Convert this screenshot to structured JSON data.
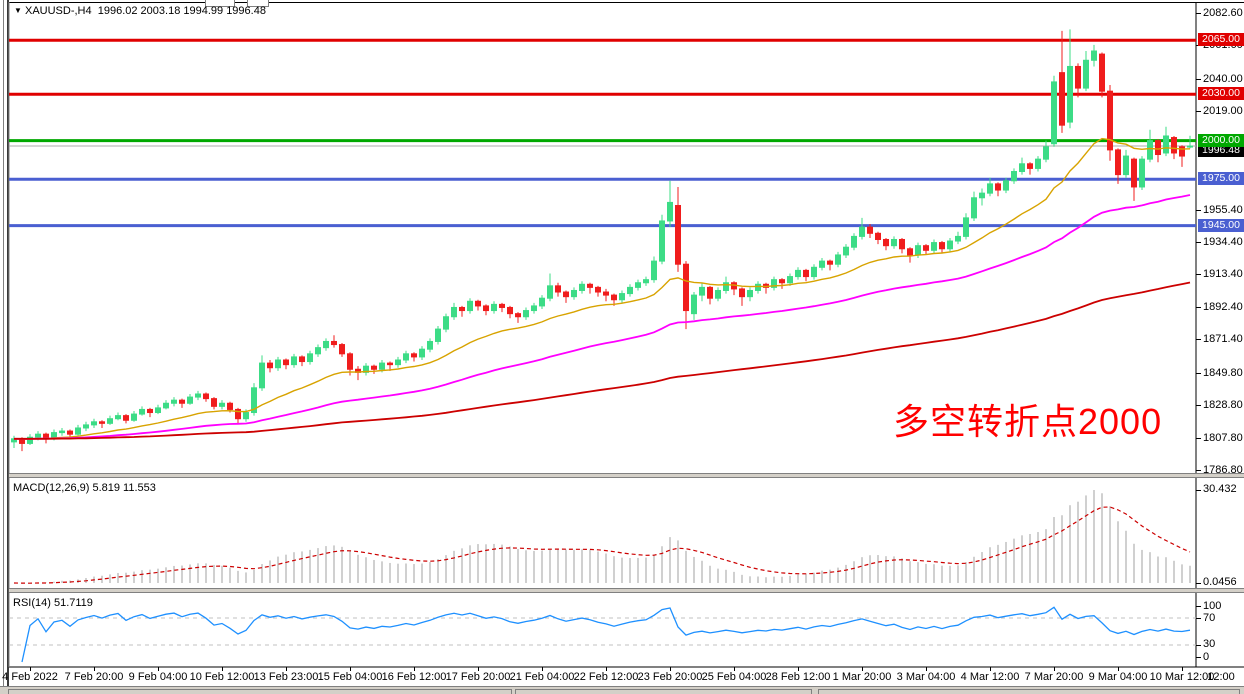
{
  "title_bar": {
    "collapse_icon": "▼",
    "symbol": "XAUUSD-,H4",
    "ohlc_text": "1996.02 2003.18 1994.99 1996.48"
  },
  "annotation": {
    "text": "多空转折点2000",
    "color": "#FF0000"
  },
  "colors": {
    "bull": "#3CDC86",
    "bear": "#F01D1D",
    "ma_fast": "#D8A300",
    "ma_mid": "#FF00FF",
    "ma_slow": "#CC0000",
    "level_red": "#E00000",
    "level_green": "#00A800",
    "level_blue": "#4A5FD1",
    "current_line": "#ABABAB",
    "current_badge": "#000000",
    "macd_hist": "#C0C0C0",
    "macd_signal": "#CC0000",
    "rsi_line": "#1E90FF",
    "dashed_level": "#C0C0C0"
  },
  "chart_data": {
    "type": "candlestick",
    "symbol": "XAUUSD-",
    "timeframe": "H4",
    "current_bar": {
      "open": 1996.02,
      "high": 2003.18,
      "low": 1994.99,
      "close": 1996.48
    },
    "price_axis_ticks": [
      "2082.60",
      "2061.60",
      "2040.00",
      "2019.00",
      "1955.40",
      "1934.40",
      "1913.40",
      "1892.40",
      "1871.40",
      "1849.80",
      "1828.80",
      "1807.80",
      "1786.80"
    ],
    "price_axis_tick_values": [
      2082.6,
      2061.6,
      2040.0,
      2019.0,
      1955.4,
      1934.4,
      1913.4,
      1892.4,
      1871.4,
      1849.8,
      1828.8,
      1807.8,
      1786.8
    ],
    "h_levels": [
      {
        "value": 2065.0,
        "label": "2065.00",
        "color": "#E00000"
      },
      {
        "value": 2030.0,
        "label": "2030.00",
        "color": "#E00000"
      },
      {
        "value": 2000.0,
        "label": "2000.00",
        "color": "#00A800"
      },
      {
        "value": 1975.0,
        "label": "1975.00",
        "color": "#4A5FD1"
      },
      {
        "value": 1945.0,
        "label": "1945.00",
        "color": "#4A5FD1"
      }
    ],
    "current_price": {
      "value": 1996.48,
      "label": "1996.48"
    },
    "price_range": {
      "top": 2082.6,
      "bottom": 1786.8
    },
    "moving_averages": [
      {
        "name": "ma-fast",
        "period": 20,
        "color": "#D8A300",
        "width": 1.4
      },
      {
        "name": "ma-mid",
        "period": 60,
        "color": "#FF00FF",
        "width": 1.8
      },
      {
        "name": "ma-slow",
        "period": 170,
        "color": "#CC0000",
        "width": 1.8
      }
    ],
    "candles": [
      [
        1805,
        1809,
        1801,
        1807
      ],
      [
        1807,
        1808,
        1799,
        1804
      ],
      [
        1804,
        1810,
        1803,
        1808
      ],
      [
        1808,
        1812,
        1806,
        1810
      ],
      [
        1810,
        1811,
        1804,
        1807
      ],
      [
        1807,
        1813,
        1806,
        1811
      ],
      [
        1811,
        1814,
        1809,
        1812
      ],
      [
        1812,
        1813,
        1807,
        1810
      ],
      [
        1810,
        1816,
        1809,
        1814
      ],
      [
        1814,
        1818,
        1812,
        1816
      ],
      [
        1816,
        1820,
        1814,
        1818
      ],
      [
        1818,
        1819,
        1814,
        1817
      ],
      [
        1817,
        1822,
        1816,
        1820
      ],
      [
        1820,
        1824,
        1819,
        1822
      ],
      [
        1822,
        1823,
        1817,
        1819
      ],
      [
        1819,
        1825,
        1818,
        1823
      ],
      [
        1823,
        1828,
        1822,
        1826
      ],
      [
        1826,
        1827,
        1821,
        1824
      ],
      [
        1824,
        1829,
        1823,
        1827
      ],
      [
        1827,
        1832,
        1826,
        1830
      ],
      [
        1830,
        1834,
        1828,
        1832
      ],
      [
        1832,
        1833,
        1827,
        1830
      ],
      [
        1830,
        1836,
        1829,
        1834
      ],
      [
        1834,
        1838,
        1832,
        1836
      ],
      [
        1836,
        1837,
        1831,
        1833
      ],
      [
        1833,
        1834,
        1826,
        1828
      ],
      [
        1828,
        1832,
        1826,
        1830
      ],
      [
        1830,
        1831,
        1824,
        1826
      ],
      [
        1826,
        1827,
        1817,
        1820
      ],
      [
        1820,
        1826,
        1818,
        1824
      ],
      [
        1824,
        1843,
        1822,
        1840
      ],
      [
        1840,
        1861,
        1838,
        1856
      ],
      [
        1856,
        1858,
        1850,
        1853
      ],
      [
        1853,
        1860,
        1851,
        1858
      ],
      [
        1858,
        1859,
        1852,
        1855
      ],
      [
        1855,
        1862,
        1853,
        1860
      ],
      [
        1860,
        1861,
        1854,
        1857
      ],
      [
        1857,
        1864,
        1855,
        1862
      ],
      [
        1862,
        1868,
        1860,
        1866
      ],
      [
        1866,
        1872,
        1864,
        1870
      ],
      [
        1870,
        1874,
        1866,
        1868
      ],
      [
        1868,
        1869,
        1860,
        1862
      ],
      [
        1862,
        1863,
        1848,
        1852
      ],
      [
        1852,
        1854,
        1845,
        1850
      ],
      [
        1850,
        1856,
        1848,
        1854
      ],
      [
        1854,
        1855,
        1849,
        1852
      ],
      [
        1852,
        1858,
        1850,
        1856
      ],
      [
        1856,
        1857,
        1851,
        1855
      ],
      [
        1855,
        1860,
        1853,
        1858
      ],
      [
        1858,
        1864,
        1856,
        1862
      ],
      [
        1862,
        1863,
        1857,
        1860
      ],
      [
        1860,
        1867,
        1858,
        1865
      ],
      [
        1865,
        1872,
        1863,
        1870
      ],
      [
        1870,
        1880,
        1868,
        1878
      ],
      [
        1878,
        1888,
        1876,
        1886
      ],
      [
        1886,
        1895,
        1884,
        1892
      ],
      [
        1892,
        1893,
        1886,
        1890
      ],
      [
        1890,
        1898,
        1888,
        1896
      ],
      [
        1896,
        1897,
        1890,
        1893
      ],
      [
        1893,
        1894,
        1887,
        1890
      ],
      [
        1890,
        1896,
        1888,
        1894
      ],
      [
        1894,
        1895,
        1889,
        1892
      ],
      [
        1892,
        1893,
        1885,
        1888
      ],
      [
        1888,
        1889,
        1882,
        1886
      ],
      [
        1886,
        1892,
        1884,
        1890
      ],
      [
        1890,
        1895,
        1888,
        1893
      ],
      [
        1893,
        1900,
        1891,
        1898
      ],
      [
        1898,
        1914,
        1896,
        1906
      ],
      [
        1906,
        1908,
        1899,
        1902
      ],
      [
        1902,
        1903,
        1895,
        1899
      ],
      [
        1899,
        1905,
        1897,
        1903
      ],
      [
        1903,
        1909,
        1901,
        1907
      ],
      [
        1907,
        1908,
        1901,
        1905
      ],
      [
        1905,
        1906,
        1899,
        1902
      ],
      [
        1902,
        1904,
        1896,
        1900
      ],
      [
        1900,
        1901,
        1893,
        1897
      ],
      [
        1897,
        1903,
        1895,
        1901
      ],
      [
        1901,
        1907,
        1899,
        1905
      ],
      [
        1905,
        1910,
        1903,
        1908
      ],
      [
        1908,
        1912,
        1906,
        1910
      ],
      [
        1910,
        1925,
        1908,
        1922
      ],
      [
        1922,
        1952,
        1920,
        1948
      ],
      [
        1948,
        1974,
        1944,
        1960
      ],
      [
        1958,
        1970,
        1915,
        1920
      ],
      [
        1920,
        1922,
        1878,
        1890
      ],
      [
        1888,
        1902,
        1884,
        1900
      ],
      [
        1900,
        1908,
        1896,
        1905
      ],
      [
        1905,
        1906,
        1894,
        1898
      ],
      [
        1898,
        1905,
        1896,
        1903
      ],
      [
        1903,
        1912,
        1901,
        1908
      ],
      [
        1908,
        1909,
        1900,
        1904
      ],
      [
        1904,
        1905,
        1893,
        1899
      ],
      [
        1899,
        1905,
        1896,
        1903
      ],
      [
        1903,
        1909,
        1901,
        1907
      ],
      [
        1907,
        1908,
        1901,
        1905
      ],
      [
        1905,
        1912,
        1903,
        1910
      ],
      [
        1910,
        1911,
        1904,
        1908
      ],
      [
        1908,
        1914,
        1906,
        1912
      ],
      [
        1912,
        1918,
        1910,
        1916
      ],
      [
        1916,
        1917,
        1909,
        1912
      ],
      [
        1912,
        1920,
        1910,
        1918
      ],
      [
        1918,
        1924,
        1916,
        1922
      ],
      [
        1922,
        1923,
        1916,
        1920
      ],
      [
        1920,
        1928,
        1918,
        1926
      ],
      [
        1926,
        1933,
        1924,
        1931
      ],
      [
        1931,
        1940,
        1929,
        1938
      ],
      [
        1938,
        1950,
        1936,
        1944
      ],
      [
        1944,
        1946,
        1937,
        1940
      ],
      [
        1940,
        1941,
        1933,
        1936
      ],
      [
        1936,
        1937,
        1929,
        1932
      ],
      [
        1932,
        1938,
        1930,
        1936
      ],
      [
        1936,
        1937,
        1927,
        1930
      ],
      [
        1930,
        1931,
        1921,
        1926
      ],
      [
        1926,
        1934,
        1924,
        1932
      ],
      [
        1932,
        1933,
        1926,
        1929
      ],
      [
        1929,
        1936,
        1927,
        1934
      ],
      [
        1934,
        1935,
        1927,
        1930
      ],
      [
        1930,
        1937,
        1928,
        1935
      ],
      [
        1935,
        1941,
        1933,
        1938
      ],
      [
        1938,
        1953,
        1936,
        1950
      ],
      [
        1950,
        1967,
        1948,
        1963
      ],
      [
        1963,
        1969,
        1958,
        1966
      ],
      [
        1966,
        1976,
        1964,
        1972
      ],
      [
        1972,
        1973,
        1964,
        1968
      ],
      [
        1968,
        1976,
        1966,
        1974
      ],
      [
        1974,
        1982,
        1972,
        1980
      ],
      [
        1980,
        1989,
        1978,
        1985
      ],
      [
        1985,
        1986,
        1978,
        1982
      ],
      [
        1982,
        1990,
        1980,
        1988
      ],
      [
        1988,
        2000,
        1986,
        1996
      ],
      [
        1998,
        2042,
        1996,
        2038
      ],
      [
        2044,
        2071,
        2005,
        2010
      ],
      [
        2012,
        2072,
        2008,
        2048
      ],
      [
        2048,
        2050,
        2028,
        2034
      ],
      [
        2034,
        2058,
        2032,
        2052
      ],
      [
        2052,
        2062,
        2048,
        2058
      ],
      [
        2056,
        2057,
        2028,
        2032
      ],
      [
        2032,
        2036,
        1987,
        1994
      ],
      [
        1994,
        1995,
        1972,
        1978
      ],
      [
        1978,
        1994,
        1976,
        1990
      ],
      [
        1988,
        1989,
        1961,
        1970
      ],
      [
        1970,
        1990,
        1968,
        1988
      ],
      [
        1988,
        2007,
        1986,
        2000
      ],
      [
        2000,
        2001,
        1986,
        1991
      ],
      [
        1992,
        2009,
        1990,
        2003
      ],
      [
        2002,
        2003,
        1988,
        1992
      ],
      [
        1996,
        1997,
        1983,
        1990
      ],
      [
        1996.02,
        2003.18,
        1994.99,
        1996.48
      ]
    ],
    "time_labels": [
      {
        "i": 2,
        "text": "4 Feb 2022"
      },
      {
        "i": 10,
        "text": "7 Feb 20:00"
      },
      {
        "i": 18,
        "text": "9 Feb 04:00"
      },
      {
        "i": 26,
        "text": "10 Feb 12:00"
      },
      {
        "i": 34,
        "text": "13 Feb 23:00"
      },
      {
        "i": 42,
        "text": "15 Feb 04:00"
      },
      {
        "i": 50,
        "text": "16 Feb 12:00"
      },
      {
        "i": 58,
        "text": "17 Feb 20:00"
      },
      {
        "i": 66,
        "text": "21 Feb 04:00"
      },
      {
        "i": 74,
        "text": "22 Feb 12:00"
      },
      {
        "i": 82,
        "text": "23 Feb 20:00"
      },
      {
        "i": 90,
        "text": "25 Feb 04:00"
      },
      {
        "i": 98,
        "text": "28 Feb 12:00"
      },
      {
        "i": 106,
        "text": "1 Mar 20:00"
      },
      {
        "i": 114,
        "text": "3 Mar 04:00"
      },
      {
        "i": 122,
        "text": "4 Mar 12:00"
      },
      {
        "i": 130,
        "text": "7 Mar 20:00"
      },
      {
        "i": 138,
        "text": "9 Mar 04:00"
      },
      {
        "i": 146,
        "text": "10 Mar 12:00"
      }
    ],
    "time_label_partial": "12:00",
    "macd": {
      "label": "MACD(12,26,9) 5.819 11.553",
      "fast": 12,
      "slow": 26,
      "signal": 9,
      "value_main": 5.819,
      "value_signal": 11.553,
      "scale_top": "30.432",
      "scale_bottom": "0.0456"
    },
    "rsi": {
      "label": "RSI(14) 51.7119",
      "period": 14,
      "value": 51.7119,
      "scale": [
        "100",
        "70",
        "30",
        "0"
      ],
      "dashed_levels": [
        70,
        30
      ]
    }
  }
}
